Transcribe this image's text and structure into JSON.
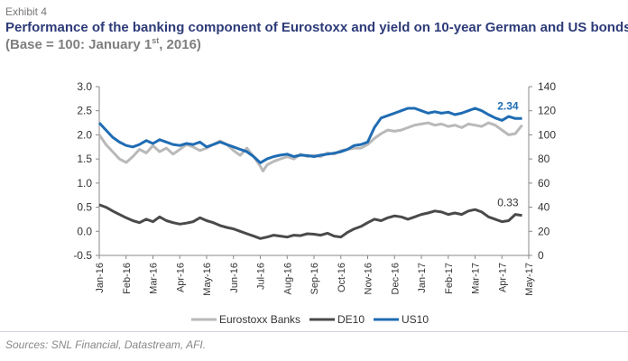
{
  "header": {
    "exhibit": "Exhibit 4",
    "title": "Performance of the banking component of Eurostoxx and yield on 10-year German and US bonds",
    "subtitle_pre": "(Base = 100: January 1",
    "subtitle_sup": "st",
    "subtitle_post": ", 2016)"
  },
  "footer": {
    "source": "Sources: SNL Financial, Datastream, AFI."
  },
  "colors": {
    "banks": "#b9b9b9",
    "de10": "#4a4a4a",
    "us10": "#1f6cb3",
    "axis": "#888888",
    "title": "#2d3b78"
  },
  "chart_data": {
    "type": "line",
    "x_ticks": [
      "Jan-16",
      "Feb-16",
      "Mar-16",
      "Apr-16",
      "May-16",
      "Jun-16",
      "Jul-16",
      "Aug-16",
      "Sep-16",
      "Oct-16",
      "Nov-16",
      "Dec-16",
      "Jan-17",
      "Feb-17",
      "Mar-17",
      "Apr-17",
      "May-17"
    ],
    "y_left": {
      "ylim": [
        -0.5,
        3.0
      ],
      "ticks": [
        "-0.5",
        "0.0",
        "0.5",
        "1.0",
        "1.5",
        "2.0",
        "2.5",
        "3.0"
      ]
    },
    "y_right": {
      "ylim": [
        0,
        140
      ],
      "ticks": [
        "0",
        "20",
        "40",
        "60",
        "80",
        "100",
        "120",
        "140"
      ]
    },
    "series": [
      {
        "name": "Eurostoxx Banks",
        "axis": "right",
        "x": [
          0,
          0.25,
          0.5,
          0.75,
          1,
          1.25,
          1.5,
          1.75,
          2,
          2.25,
          2.5,
          2.75,
          3,
          3.25,
          3.5,
          3.75,
          4,
          4.25,
          4.5,
          4.75,
          5,
          5.25,
          5.5,
          5.75,
          6,
          6.1,
          6.25,
          6.5,
          6.75,
          7,
          7.25,
          7.5,
          7.75,
          8,
          8.25,
          8.5,
          8.75,
          9,
          9.25,
          9.5,
          9.75,
          10,
          10.25,
          10.5,
          10.75,
          11,
          11.25,
          11.5,
          11.75,
          12,
          12.25,
          12.5,
          12.75,
          13,
          13.25,
          13.5,
          13.75,
          14,
          14.25,
          14.5,
          14.75,
          15,
          15.25,
          15.5,
          15.75
        ],
        "values": [
          100,
          92,
          86,
          80,
          77,
          82,
          88,
          85,
          91,
          86,
          89,
          84,
          88,
          92,
          90,
          87,
          89,
          92,
          95,
          92,
          87,
          83,
          89,
          82,
          74,
          70,
          75,
          78,
          80,
          82,
          80,
          84,
          82,
          83,
          82,
          85,
          84,
          87,
          88,
          89,
          89,
          92,
          97,
          101,
          104,
          103,
          104,
          106,
          108,
          109,
          110,
          108,
          109,
          107,
          108,
          106,
          109,
          108,
          107,
          110,
          108,
          104,
          100,
          101,
          108
        ]
      },
      {
        "name": "DE10",
        "axis": "left",
        "x": [
          0,
          0.25,
          0.5,
          0.75,
          1,
          1.25,
          1.5,
          1.75,
          2,
          2.25,
          2.5,
          2.75,
          3,
          3.25,
          3.5,
          3.75,
          4,
          4.25,
          4.5,
          4.75,
          5,
          5.25,
          5.5,
          5.75,
          6,
          6.25,
          6.5,
          6.75,
          7,
          7.25,
          7.5,
          7.75,
          8,
          8.25,
          8.5,
          8.75,
          9,
          9.25,
          9.5,
          9.75,
          10,
          10.25,
          10.5,
          10.75,
          11,
          11.25,
          11.5,
          11.75,
          12,
          12.25,
          12.5,
          12.75,
          13,
          13.25,
          13.5,
          13.75,
          14,
          14.25,
          14.5,
          14.75,
          15,
          15.25,
          15.5,
          15.75
        ],
        "values": [
          0.55,
          0.5,
          0.42,
          0.35,
          0.28,
          0.22,
          0.18,
          0.25,
          0.2,
          0.3,
          0.22,
          0.18,
          0.15,
          0.17,
          0.2,
          0.28,
          0.22,
          0.18,
          0.12,
          0.08,
          0.05,
          0.0,
          -0.05,
          -0.1,
          -0.15,
          -0.12,
          -0.08,
          -0.1,
          -0.12,
          -0.08,
          -0.09,
          -0.05,
          -0.06,
          -0.08,
          -0.04,
          -0.1,
          -0.12,
          -0.02,
          0.05,
          0.1,
          0.18,
          0.25,
          0.22,
          0.28,
          0.32,
          0.3,
          0.25,
          0.3,
          0.35,
          0.38,
          0.42,
          0.4,
          0.35,
          0.38,
          0.35,
          0.42,
          0.45,
          0.4,
          0.3,
          0.25,
          0.2,
          0.22,
          0.35,
          0.33
        ]
      },
      {
        "name": "US10",
        "axis": "left",
        "x": [
          0,
          0.25,
          0.5,
          0.75,
          1,
          1.25,
          1.5,
          1.75,
          2,
          2.25,
          2.5,
          2.75,
          3,
          3.25,
          3.5,
          3.75,
          4,
          4.25,
          4.5,
          4.75,
          5,
          5.25,
          5.5,
          5.75,
          6,
          6.25,
          6.5,
          6.75,
          7,
          7.25,
          7.5,
          7.75,
          8,
          8.25,
          8.5,
          8.75,
          9,
          9.25,
          9.5,
          9.75,
          10,
          10.25,
          10.5,
          10.75,
          11,
          11.25,
          11.5,
          11.75,
          12,
          12.25,
          12.5,
          12.75,
          13,
          13.25,
          13.5,
          13.75,
          14,
          14.25,
          14.5,
          14.75,
          15,
          15.25,
          15.5,
          15.75
        ],
        "values": [
          2.25,
          2.1,
          1.95,
          1.85,
          1.78,
          1.75,
          1.8,
          1.88,
          1.82,
          1.9,
          1.85,
          1.8,
          1.78,
          1.82,
          1.8,
          1.85,
          1.75,
          1.8,
          1.85,
          1.8,
          1.75,
          1.7,
          1.65,
          1.55,
          1.42,
          1.5,
          1.55,
          1.58,
          1.6,
          1.55,
          1.58,
          1.57,
          1.55,
          1.58,
          1.6,
          1.62,
          1.65,
          1.7,
          1.78,
          1.8,
          1.85,
          2.15,
          2.35,
          2.4,
          2.45,
          2.5,
          2.55,
          2.55,
          2.5,
          2.45,
          2.48,
          2.45,
          2.47,
          2.42,
          2.45,
          2.5,
          2.55,
          2.5,
          2.42,
          2.35,
          2.3,
          2.38,
          2.34,
          2.34
        ]
      }
    ],
    "annotations": [
      {
        "text": "2.34",
        "series": "US10"
      },
      {
        "text": "0.33",
        "series": "DE10"
      }
    ],
    "legend": {
      "position": "bottom",
      "entries": [
        "Eurostoxx Banks",
        "DE10",
        "US10"
      ]
    },
    "grid": false
  }
}
